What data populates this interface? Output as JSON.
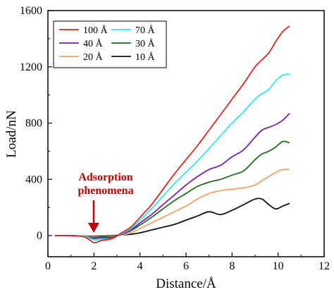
{
  "chart_data": {
    "type": "line",
    "xlabel": "Distance/Å",
    "ylabel": "Load/nN",
    "xlim": [
      0,
      12
    ],
    "ylim": [
      -150,
      1600
    ],
    "xticks": [
      "0",
      "2",
      "4",
      "6",
      "8",
      "10",
      "12"
    ],
    "yticks": [
      "0",
      "400",
      "800",
      "1200",
      "1600"
    ],
    "grid": false,
    "legend_position": "top-left",
    "annotation": {
      "lines": [
        "Adsorption",
        "phenomena"
      ],
      "color": "#c00000",
      "target": {
        "x": 2.05,
        "y": 0
      }
    },
    "series": [
      {
        "name": "100 Å",
        "color": "#e0231c",
        "x": [
          0.3,
          1.0,
          1.6,
          2.0,
          2.3,
          2.8,
          3.2,
          3.6,
          4.0,
          4.5,
          5.0,
          5.5,
          6.0,
          6.5,
          7.0,
          7.5,
          8.0,
          8.5,
          9.0,
          9.3,
          9.6,
          9.9,
          10.2,
          10.5
        ],
        "y": [
          0,
          0,
          -10,
          -50,
          -35,
          -20,
          20,
          60,
          130,
          220,
          330,
          440,
          540,
          640,
          750,
          860,
          970,
          1080,
          1200,
          1250,
          1300,
          1380,
          1450,
          1490
        ]
      },
      {
        "name": "70 Å",
        "color": "#2ee8f0",
        "x": [
          0.3,
          1.0,
          1.6,
          2.0,
          2.3,
          2.8,
          3.2,
          3.6,
          4.0,
          4.5,
          5.0,
          5.5,
          6.0,
          6.5,
          7.0,
          7.5,
          8.0,
          8.5,
          9.0,
          9.3,
          9.6,
          9.9,
          10.2,
          10.5
        ],
        "y": [
          0,
          0,
          -5,
          -30,
          -25,
          -20,
          15,
          50,
          110,
          190,
          280,
          370,
          450,
          530,
          620,
          710,
          800,
          880,
          970,
          1010,
          1040,
          1100,
          1140,
          1150
        ]
      },
      {
        "name": "40 Å",
        "color": "#7b1fa2",
        "x": [
          0.3,
          1.0,
          1.6,
          2.0,
          2.3,
          2.8,
          3.2,
          3.6,
          4.0,
          4.5,
          5.0,
          5.5,
          6.0,
          6.5,
          7.0,
          7.5,
          8.0,
          8.5,
          9.0,
          9.3,
          9.6,
          9.9,
          10.2,
          10.5
        ],
        "y": [
          0,
          0,
          -5,
          -20,
          -15,
          -15,
          10,
          40,
          90,
          150,
          220,
          290,
          360,
          420,
          470,
          500,
          560,
          610,
          700,
          750,
          770,
          790,
          820,
          870
        ]
      },
      {
        "name": "30 Å",
        "color": "#1f6e1f",
        "x": [
          0.3,
          1.0,
          1.6,
          2.0,
          2.3,
          2.8,
          3.2,
          3.6,
          4.0,
          4.5,
          5.0,
          5.5,
          6.0,
          6.5,
          7.0,
          7.5,
          8.0,
          8.5,
          9.0,
          9.3,
          9.6,
          9.9,
          10.2,
          10.5
        ],
        "y": [
          0,
          0,
          -5,
          -15,
          -10,
          -10,
          10,
          35,
          75,
          130,
          190,
          250,
          300,
          350,
          380,
          400,
          430,
          460,
          540,
          580,
          600,
          630,
          670,
          660
        ]
      },
      {
        "name": "20 Å",
        "color": "#f2a06a",
        "x": [
          0.3,
          1.0,
          1.6,
          2.0,
          2.3,
          2.8,
          3.2,
          3.6,
          4.0,
          4.5,
          5.0,
          5.5,
          6.0,
          6.5,
          7.0,
          7.5,
          8.0,
          8.5,
          9.0,
          9.3,
          9.6,
          9.9,
          10.2,
          10.5
        ],
        "y": [
          0,
          0,
          -3,
          -10,
          -8,
          -5,
          5,
          20,
          50,
          90,
          130,
          170,
          210,
          260,
          300,
          320,
          330,
          340,
          360,
          390,
          420,
          450,
          470,
          470
        ]
      },
      {
        "name": "10 Å",
        "color": "#111111",
        "x": [
          0.3,
          1.0,
          1.6,
          2.0,
          2.3,
          2.8,
          3.2,
          3.6,
          4.0,
          4.5,
          5.0,
          5.5,
          6.0,
          6.5,
          7.0,
          7.5,
          8.0,
          8.5,
          9.0,
          9.3,
          9.6,
          9.9,
          10.2,
          10.5
        ],
        "y": [
          0,
          0,
          -2,
          -5,
          -3,
          0,
          5,
          10,
          20,
          40,
          60,
          80,
          110,
          140,
          170,
          150,
          180,
          220,
          260,
          260,
          220,
          190,
          210,
          230
        ]
      }
    ]
  }
}
